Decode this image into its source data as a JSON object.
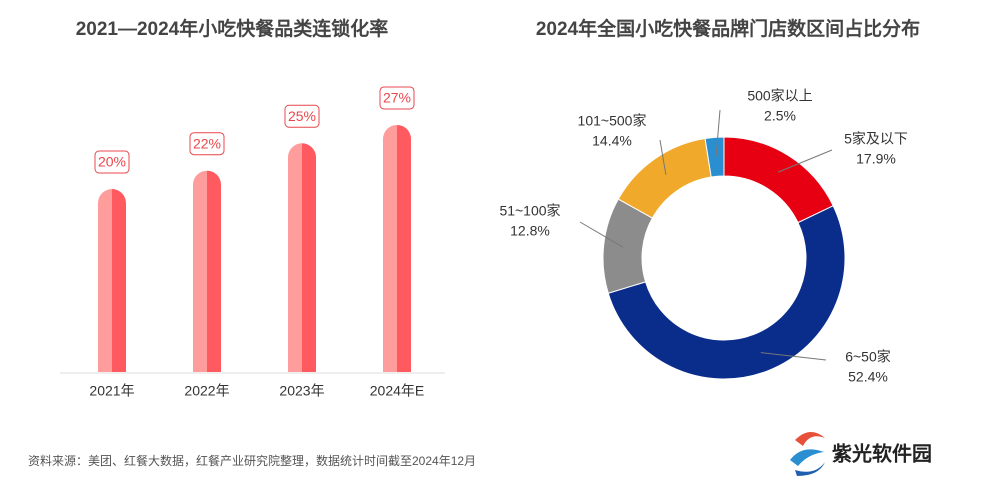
{
  "chart_data": [
    {
      "type": "bar",
      "title": "2021—2024年小吃快餐品类连锁化率",
      "categories": [
        "2021年",
        "2022年",
        "2023年",
        "2024年E"
      ],
      "values": [
        20,
        22,
        25,
        27
      ],
      "value_labels": [
        "20%",
        "22%",
        "25%",
        "27%"
      ],
      "color": "#ff5a5f"
    },
    {
      "type": "donut",
      "title": "2024年全国小吃快餐品牌门店数区间占比分布",
      "categories": [
        "5家及以下",
        "6~50家",
        "51~100家",
        "101~500家",
        "500家以上"
      ],
      "values": [
        17.9,
        52.4,
        12.8,
        14.4,
        2.5
      ],
      "value_labels": [
        "17.9%",
        "52.4%",
        "12.8%",
        "14.4%",
        "2.5%"
      ],
      "colors": [
        "#e60012",
        "#0a2d8c",
        "#8c8c8c",
        "#f0a92a",
        "#2a8fd0"
      ]
    }
  ],
  "source": "资料来源：美团、红餐大数据，红餐产业研究院整理，数据统计时间截至2024年12月",
  "brand": "紫光软件园"
}
